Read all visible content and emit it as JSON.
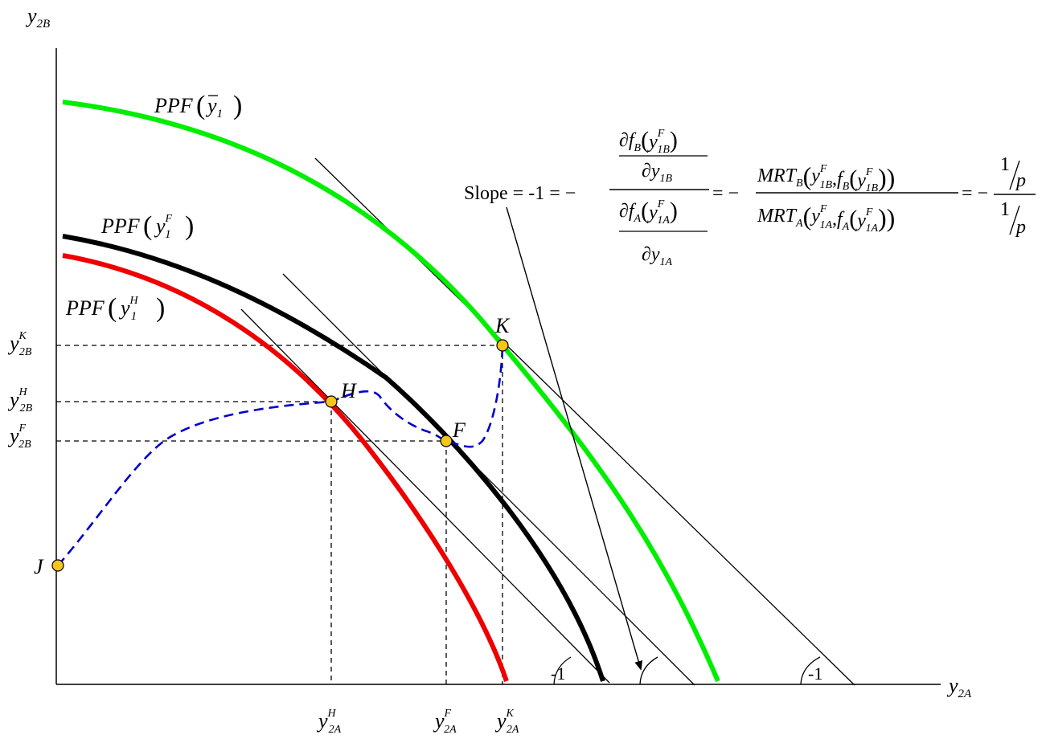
{
  "axes": {
    "y_label": "y",
    "y_sub": "2B",
    "x_label": "y",
    "x_sub": "2A"
  },
  "curves": {
    "green": {
      "label_main": "PPF",
      "label_arg": "y",
      "label_arg_sub": "1",
      "color": "#00ee00"
    },
    "black": {
      "label_main": "PPF",
      "label_arg": "y",
      "label_arg_sub": "1",
      "label_arg_sup": "F",
      "color": "#000000"
    },
    "red": {
      "label_main": "PPF",
      "label_arg": "y",
      "label_arg_sub": "1",
      "label_arg_sup": "H",
      "color": "#ee0000"
    }
  },
  "path_color": "#0000cc",
  "point_color": "#f5c518",
  "points": {
    "K": "K",
    "H": "H",
    "F": "F",
    "J": "J"
  },
  "y_ticks": [
    {
      "base": "y",
      "sub": "2B",
      "sup": "K"
    },
    {
      "base": "y",
      "sub": "2B",
      "sup": "H"
    },
    {
      "base": "y",
      "sub": "2B",
      "sup": "F"
    }
  ],
  "x_ticks": [
    {
      "base": "y",
      "sub": "2A",
      "sup": "H"
    },
    {
      "base": "y",
      "sub": "2A",
      "sup": "F"
    },
    {
      "base": "y",
      "sub": "2A",
      "sup": "K"
    }
  ],
  "angle_labels": {
    "first": "-1",
    "second": "-1"
  },
  "slope_formula": {
    "prefix": "Slope = -1 = −",
    "eq1": "= −",
    "eq2": "= −",
    "partial": "∂",
    "f": "f",
    "B": "B",
    "A": "A",
    "y": "y",
    "F": "F",
    "sub1B": "1B",
    "sub1A": "1A",
    "MRT": "MRT",
    "comma": ",",
    "one": "1",
    "p": "p"
  }
}
